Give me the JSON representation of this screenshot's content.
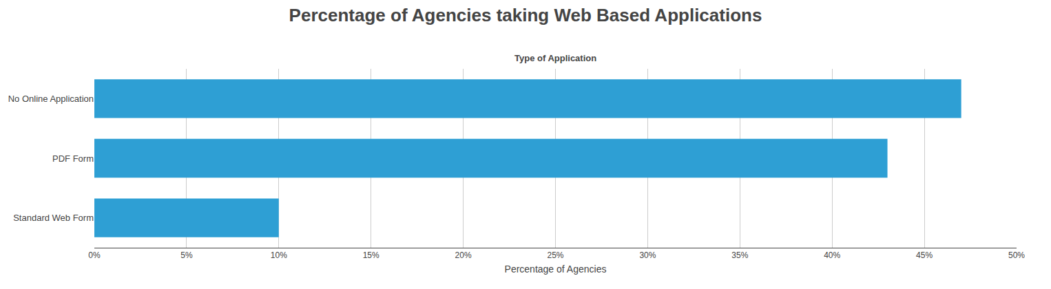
{
  "chart_data": {
    "type": "bar",
    "orientation": "horizontal",
    "title": "Percentage of Agencies taking Web Based Applications",
    "subtitle": "Type of Application",
    "xlabel": "Percentage of Agencies",
    "categories": [
      "No Online Application",
      "PDF Form",
      "Standard Web Form"
    ],
    "values": [
      0.47,
      0.43,
      0.1
    ],
    "color": "#2E9FD4",
    "xlim": [
      0,
      0.5
    ],
    "xticks": [
      {
        "value": 0.0,
        "label": "0%"
      },
      {
        "value": 0.05,
        "label": "5%"
      },
      {
        "value": 0.1,
        "label": "10%"
      },
      {
        "value": 0.15,
        "label": "15%"
      },
      {
        "value": 0.2,
        "label": "20%"
      },
      {
        "value": 0.25,
        "label": "25%"
      },
      {
        "value": 0.3,
        "label": "30%"
      },
      {
        "value": 0.35,
        "label": "35%"
      },
      {
        "value": 0.4,
        "label": "40%"
      },
      {
        "value": 0.45,
        "label": "45%"
      },
      {
        "value": 0.5,
        "label": "50%"
      }
    ],
    "grid": true
  }
}
